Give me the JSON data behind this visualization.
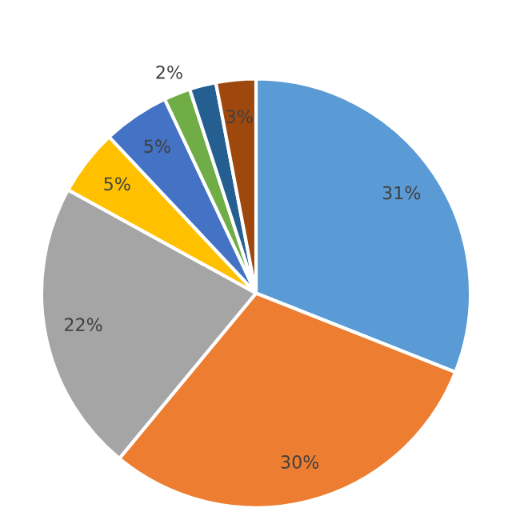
{
  "chart_data": {
    "type": "pie",
    "categories": [
      null,
      null,
      null,
      null,
      null,
      null,
      null,
      null
    ],
    "values": [
      31,
      30,
      22,
      5,
      5,
      2,
      2,
      3
    ],
    "colors": [
      "#5b9bd5",
      "#ed7d31",
      "#a5a5a5",
      "#ffc000",
      "#4472c4",
      "#70ad47",
      "#255e91",
      "#9e480e"
    ],
    "value_labels": [
      "31%",
      "30%",
      "22%",
      "5%",
      "5%",
      "2%",
      null,
      "3%"
    ]
  }
}
